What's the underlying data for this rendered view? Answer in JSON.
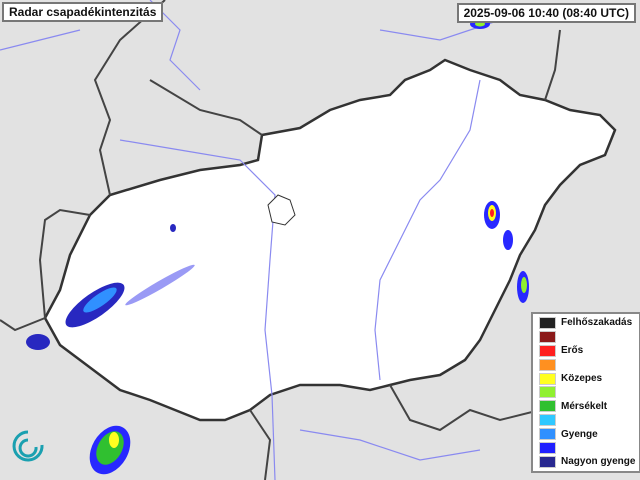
{
  "title": "Radar csapadékintenzitás",
  "timestamp": "2025-09-06 10:40 (08:40 UTC)",
  "colors": {
    "background": "#e4e4e4",
    "country": "#ffffff",
    "border": "#333333",
    "river": "#8a8af0"
  },
  "legend": [
    {
      "label": "Felhőszakadás",
      "color": "#222222"
    },
    {
      "label": "",
      "color": "#8b1a1a"
    },
    {
      "label": "Erős",
      "color": "#ff2020"
    },
    {
      "label": "",
      "color": "#ff9020"
    },
    {
      "label": "Közepes",
      "color": "#ffff20"
    },
    {
      "label": "",
      "color": "#90f030"
    },
    {
      "label": "Mérsékelt",
      "color": "#30c030"
    },
    {
      "label": "",
      "color": "#30c8ff"
    },
    {
      "label": "Gyenge",
      "color": "#3090ff"
    },
    {
      "label": "",
      "color": "#2020ff"
    },
    {
      "label": "Nagyon gyenge",
      "color": "#282890"
    }
  ],
  "logo": "swirl-logo"
}
